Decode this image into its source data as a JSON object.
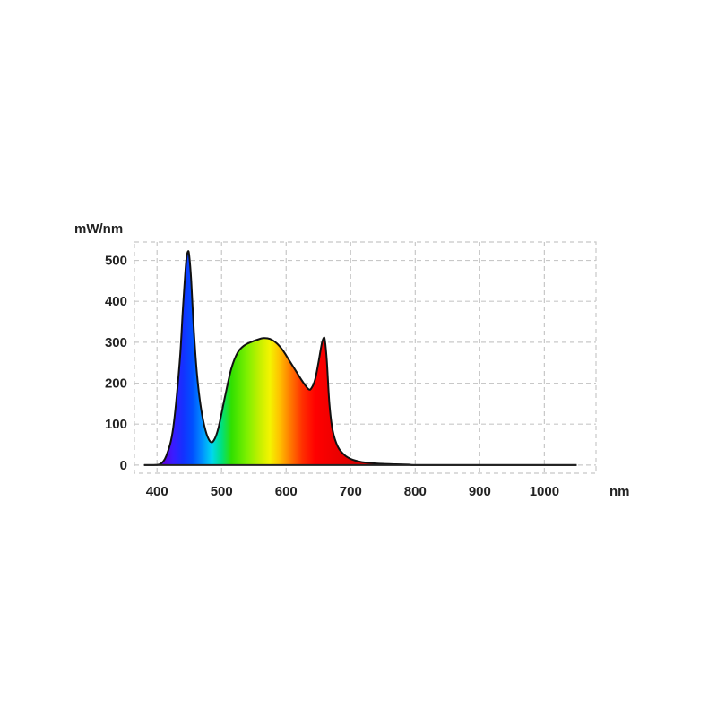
{
  "chart_data": {
    "type": "area",
    "ylabel": "mW/nm",
    "xlabel": "nm",
    "xlim": [
      365,
      1080
    ],
    "ylim": [
      -20,
      545
    ],
    "x_ticks": [
      400,
      500,
      600,
      700,
      800,
      900,
      1000
    ],
    "y_ticks": [
      0,
      100,
      200,
      300,
      400,
      500
    ],
    "grid": true,
    "legend": "none",
    "fill": "visible-spectrum gradient (violet → blue → cyan → green → yellow → orange → red)",
    "line_color": "#111111",
    "grid_color": "#c8c8c8",
    "series": [
      {
        "x": [
          380,
          395,
          405,
          415,
          425,
          435,
          440,
          445,
          448,
          450,
          453,
          457,
          462,
          468,
          475,
          482,
          488,
          495,
          505,
          515,
          525,
          535,
          545,
          555,
          565,
          575,
          585,
          595,
          605,
          615,
          625,
          635,
          640,
          645,
          650,
          655,
          658,
          660,
          663,
          667,
          672,
          680,
          690,
          700,
          715,
          730,
          750,
          770,
          790,
          800,
          850,
          900,
          950,
          1000,
          1050
        ],
        "y": [
          0,
          0,
          2,
          25,
          90,
          250,
          380,
          495,
          522,
          510,
          450,
          330,
          220,
          140,
          85,
          58,
          60,
          90,
          165,
          235,
          275,
          292,
          300,
          306,
          310,
          308,
          298,
          280,
          255,
          230,
          205,
          185,
          190,
          210,
          250,
          295,
          310,
          305,
          255,
          150,
          85,
          45,
          25,
          15,
          8,
          5,
          3,
          2,
          1,
          0,
          0,
          0,
          0,
          0,
          0
        ]
      }
    ]
  }
}
